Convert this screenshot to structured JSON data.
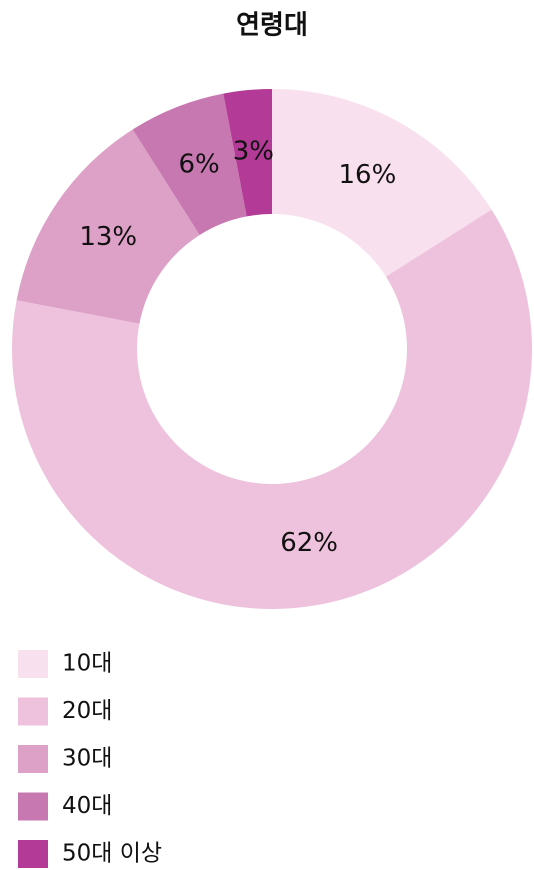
{
  "chart_data": {
    "type": "donut",
    "title": "연령대",
    "categories": [
      "10대",
      "20대",
      "30대",
      "40대",
      "50대 이상"
    ],
    "values": [
      16,
      62,
      13,
      6,
      3
    ],
    "value_labels": [
      "16%",
      "62%",
      "13%",
      "6%",
      "3%"
    ],
    "colors": [
      "#f9e0ee",
      "#eec2dc",
      "#dda0c6",
      "#c878b0",
      "#b33a96"
    ]
  }
}
